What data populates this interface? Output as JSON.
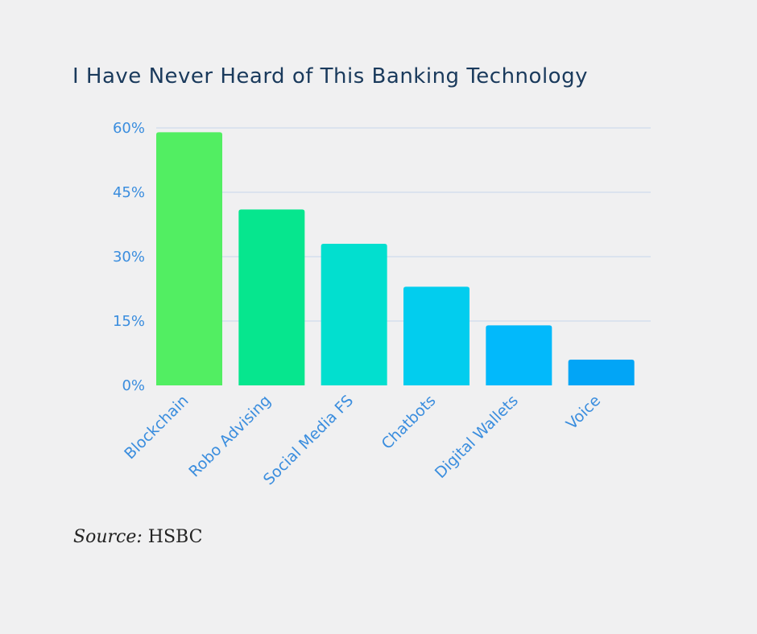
{
  "chart_data": {
    "type": "bar",
    "title": "I Have Never Heard of This Banking Technology",
    "categories": [
      "Blockchain",
      "Robo Advising",
      "Social Media FS",
      "Chatbots",
      "Digital Wallets",
      "Voice"
    ],
    "values": [
      59,
      41,
      33,
      23,
      14,
      6
    ],
    "unit": "%",
    "ylim": [
      0,
      60
    ],
    "yticks": [
      0,
      15,
      30,
      45,
      60
    ],
    "ytick_labels": [
      "0%",
      "15%",
      "30%",
      "45%",
      "60%"
    ],
    "xlabel": "",
    "ylabel": "",
    "grid": true,
    "colors": [
      "#52ee62",
      "#06e68e",
      "#02dfcf",
      "#02cdee",
      "#02b9fb",
      "#02a5f6"
    ],
    "grid_color": "#c6d6ec",
    "tick_color": "#3a8dde"
  },
  "source": {
    "label": "Source:",
    "value": "HSBC"
  }
}
